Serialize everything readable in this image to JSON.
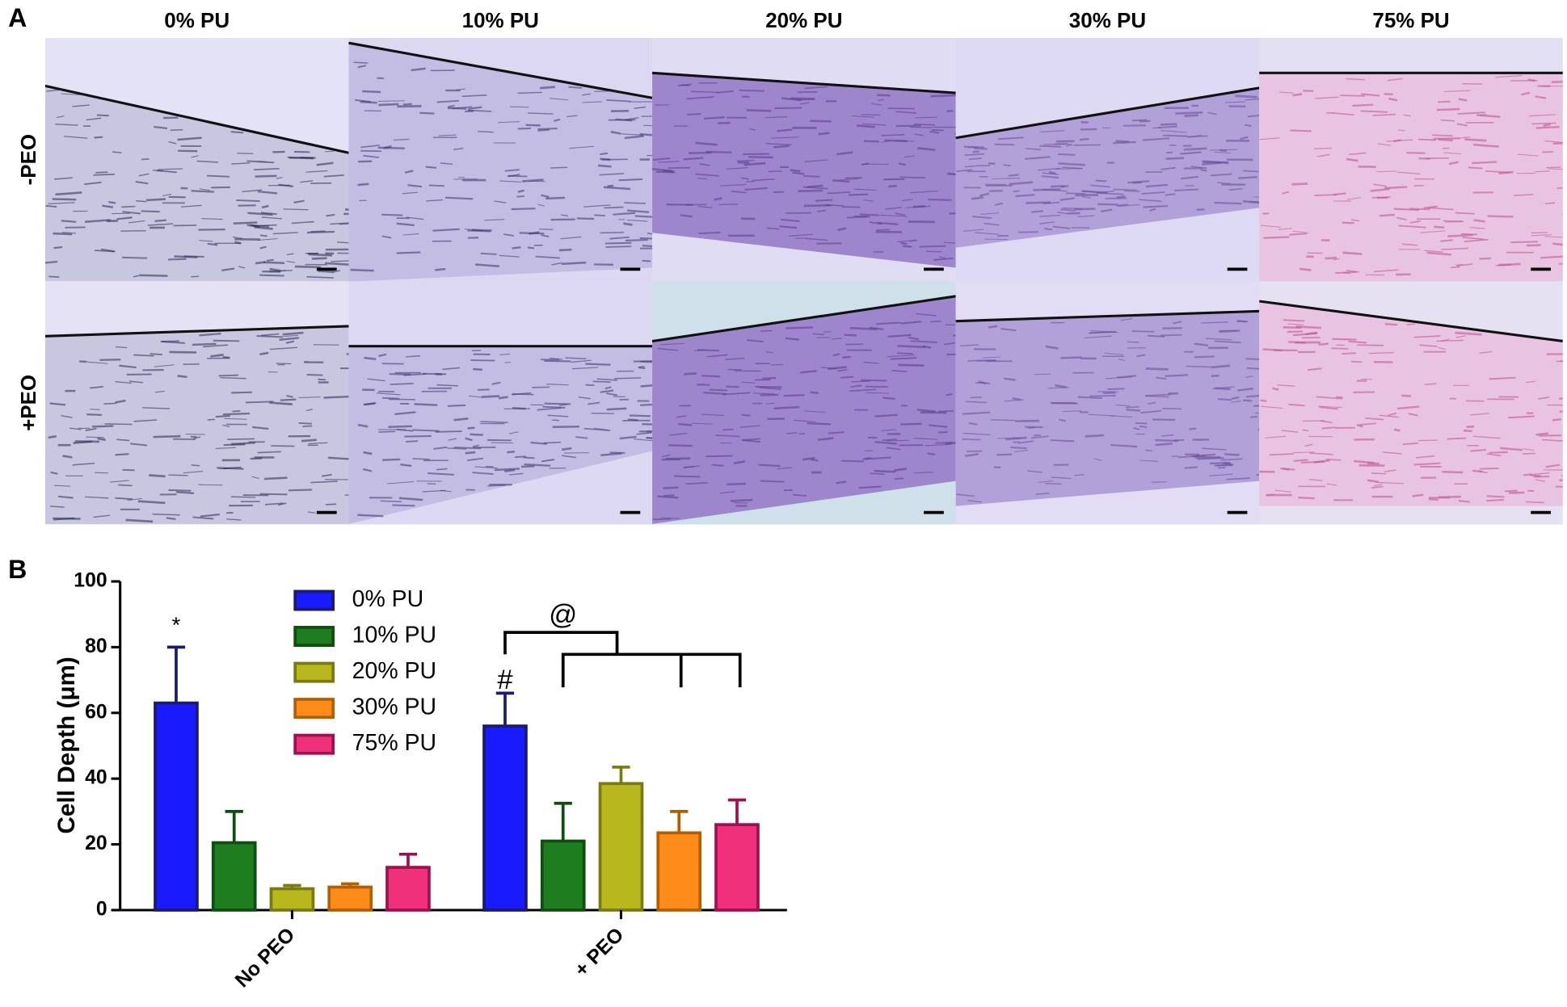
{
  "panel_a": {
    "label": "A",
    "columns": [
      "0% PU",
      "10% PU",
      "20% PU",
      "30% PU",
      "75% PU"
    ],
    "rows": [
      "-PEO",
      "+PEO"
    ]
  },
  "chart_data": {
    "type": "bar",
    "panel_label": "B",
    "ylabel": "Cell Depth (μm)",
    "categories": [
      "No PEO",
      "+ PEO"
    ],
    "series": [
      {
        "name": "0% PU",
        "color": "#1a1aff",
        "edge": "#1a1a6e",
        "values": [
          63,
          56
        ],
        "errors": [
          17,
          10
        ]
      },
      {
        "name": "10% PU",
        "color": "#1e7d1e",
        "edge": "#0e4e0e",
        "values": [
          20.5,
          21
        ],
        "errors": [
          9.5,
          11.5
        ]
      },
      {
        "name": "20% PU",
        "color": "#b8b81e",
        "edge": "#7a7a10",
        "values": [
          6.5,
          38.5
        ],
        "errors": [
          1,
          5
        ]
      },
      {
        "name": "30% PU",
        "color": "#ff8c1a",
        "edge": "#b35f00",
        "values": [
          7,
          23.5
        ],
        "errors": [
          1,
          6.5
        ]
      },
      {
        "name": "75% PU",
        "color": "#f0307a",
        "edge": "#a01050",
        "values": [
          13,
          26
        ],
        "errors": [
          4,
          7.5
        ]
      }
    ],
    "ylim": [
      0,
      100
    ],
    "yticks": [
      0,
      20,
      40,
      60,
      80,
      100
    ],
    "annotations": [
      "*",
      "#",
      "@"
    ]
  }
}
